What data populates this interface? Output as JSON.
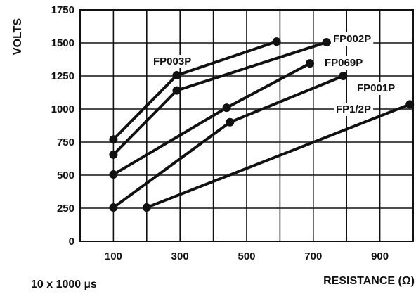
{
  "chart_data": {
    "type": "line",
    "title": "",
    "xlabel": "RESISTANCE (Ω)",
    "ylabel": "VOLTS",
    "xlim": [
      0,
      1000
    ],
    "ylim": [
      0,
      1750
    ],
    "grid": true,
    "x_ticks": [
      100,
      300,
      500,
      700,
      900
    ],
    "y_ticks": [
      0,
      250,
      500,
      750,
      1000,
      1250,
      1500,
      1750
    ],
    "series": [
      {
        "name": "FP003P",
        "points": [
          [
            100,
            770
          ],
          [
            290,
            1255
          ],
          [
            590,
            1510
          ]
        ]
      },
      {
        "name": "FP002P",
        "points": [
          [
            100,
            655
          ],
          [
            290,
            1140
          ],
          [
            740,
            1505
          ]
        ]
      },
      {
        "name": "FP069P",
        "points": [
          [
            100,
            505
          ],
          [
            440,
            1010
          ],
          [
            690,
            1345
          ]
        ]
      },
      {
        "name": "FP001P",
        "points": [
          [
            100,
            255
          ],
          [
            450,
            900
          ],
          [
            790,
            1250
          ]
        ]
      },
      {
        "name": "FP1/2P",
        "points": [
          [
            200,
            255
          ],
          [
            990,
            1035
          ]
        ]
      }
    ],
    "annotation": "10 x 1000 µs"
  }
}
